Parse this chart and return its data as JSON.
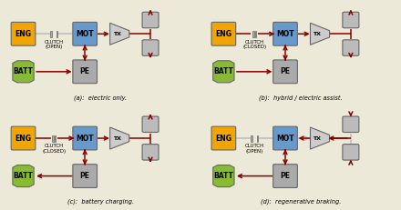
{
  "bg_color": "#ece9d8",
  "colors": {
    "eng": "#f0a500",
    "mot": "#6699cc",
    "batt": "#88bb33",
    "pe": "#aaaaaa",
    "wheel": "#bbbbbb",
    "tx": "#cccccc",
    "clutch_bar": "#aaaaaa",
    "arrow_active": "#880000",
    "arrow_inactive": "#bbbbbb",
    "box_border": "#666666",
    "line_inactive": "#aaaaaa"
  },
  "panels": [
    {
      "label": "(a):  electric only.",
      "clutch": "OPEN",
      "eng_to_mot": false,
      "batt_to_pe": true,
      "pe_to_mot": true,
      "mot_to_tx": true,
      "tx_to_wheels": true,
      "wheel_arrows_out": true,
      "regen": false,
      "charging": false
    },
    {
      "label": "(b):  hybrid / electric assist.",
      "clutch": "CLOSED",
      "eng_to_mot": true,
      "batt_to_pe": true,
      "pe_to_mot": true,
      "mot_to_tx": true,
      "tx_to_wheels": true,
      "wheel_arrows_out": true,
      "regen": false,
      "charging": false
    },
    {
      "label": "(c):  battery charging.",
      "clutch": "CLOSED",
      "eng_to_mot": true,
      "batt_to_pe": false,
      "pe_to_mot": false,
      "mot_to_tx": true,
      "tx_to_wheels": true,
      "wheel_arrows_out": true,
      "regen": false,
      "charging": true
    },
    {
      "label": "(d):  regenerative braking.",
      "clutch": "OPEN",
      "eng_to_mot": false,
      "batt_to_pe": false,
      "pe_to_mot": false,
      "mot_to_tx": false,
      "tx_to_wheels": false,
      "wheel_arrows_out": false,
      "regen": true,
      "charging": false
    }
  ]
}
